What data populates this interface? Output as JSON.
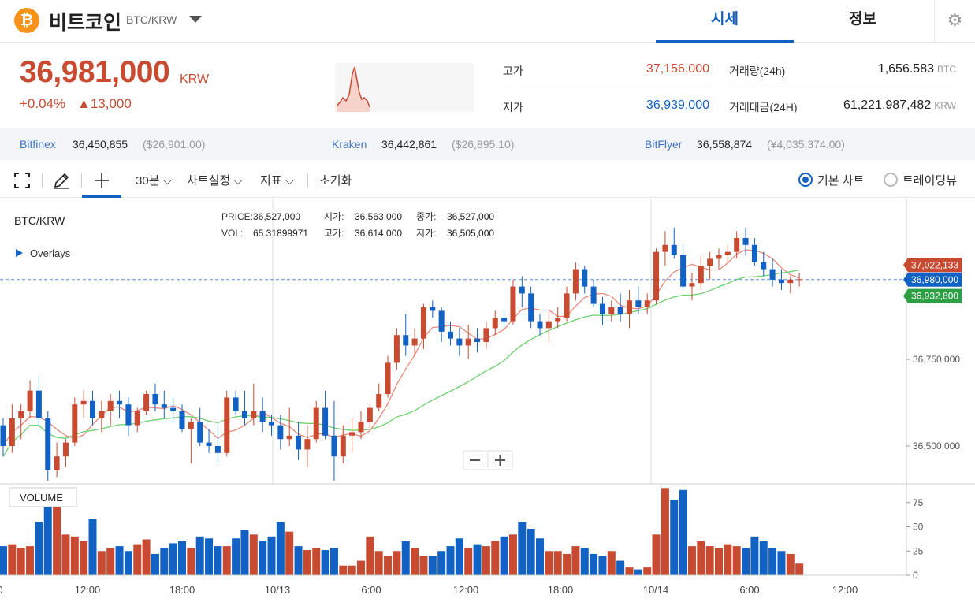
{
  "header": {
    "coin_symbol": "₿",
    "coin_name": "비트코인",
    "pair": "BTC/KRW",
    "tabs": [
      "시세",
      "정보"
    ],
    "gear": "⚙"
  },
  "price": {
    "current": "36,981,000",
    "unit": "KRW",
    "change_pct": "+0.04%",
    "change_amt": "▲13,000"
  },
  "stats": {
    "high_label": "고가",
    "high": "37,156,000",
    "low_label": "저가",
    "low": "36,939,000",
    "vol_label": "거래량(24h)",
    "vol": "1,656.583",
    "vol_unit": "BTC",
    "amt_label": "거래대금(24H)",
    "amt": "61,221,987,482",
    "amt_unit": "KRW"
  },
  "exchanges": [
    {
      "name": "Bitfinex",
      "price": "36,450,855",
      "usd": "($26,901.00)"
    },
    {
      "name": "Kraken",
      "price": "36,442,861",
      "usd": "($26,895.10)"
    },
    {
      "name": "BitFlyer",
      "price": "36,558,874",
      "usd": "(¥4,035,374.00)"
    }
  ],
  "toolbar": {
    "interval": "30분 ⌵",
    "chart_settings": "차트설정 ⌵",
    "indicators": "지표 ⌵",
    "reset": "초기화",
    "basic_chart": "기본 차트",
    "tradingview": "트레이딩뷰"
  },
  "legend": {
    "pair": "BTC/KRW",
    "overlays": "Overlays",
    "price_label": "PRICE:",
    "price": "36,527,000",
    "vol_label": "VOL:",
    "vol": "65.31899971",
    "open_label": "시가:",
    "open": "36,563,000",
    "high_label": "고가:",
    "high": "36,614,000",
    "close_label": "종가:",
    "close": "36,527,000",
    "low_label": "저가:",
    "low": "36,505,000",
    "volume_label": "VOLUME"
  },
  "colors": {
    "up": "#c84a31",
    "down": "#1261c4",
    "ma_short": "#e8897a",
    "ma_long": "#6fcf6f"
  },
  "chart_data": {
    "type": "candlestick",
    "price_ticks": [
      36500000,
      36750000
    ],
    "price_tick_labels": [
      "36,500,000",
      "36,750,000"
    ],
    "volume_ticks": [
      0,
      25,
      50,
      75
    ],
    "x_labels": [
      "0",
      "12:00",
      "18:00",
      "10/13",
      "6:00",
      "12:00",
      "18:00",
      "10/14",
      "6:00",
      "12:00"
    ],
    "tags": [
      {
        "value": 37022133,
        "label": "37,022,133",
        "color": "#c84a31"
      },
      {
        "value": 36980000,
        "label": "36,980,000",
        "color": "#1261c4"
      },
      {
        "value": 36932800,
        "label": "36,932,800",
        "color": "#2e9e44"
      }
    ],
    "current_price": 36980000,
    "candles": [
      [
        36560,
        36580,
        36470,
        36500,
        30
      ],
      [
        36500,
        36620,
        36480,
        36580,
        32
      ],
      [
        36580,
        36620,
        36520,
        36600,
        28
      ],
      [
        36600,
        36690,
        36580,
        36660,
        30
      ],
      [
        36660,
        36700,
        36560,
        36580,
        55
      ],
      [
        36580,
        36600,
        36400,
        36430,
        85
      ],
      [
        36430,
        36510,
        36410,
        36470,
        75
      ],
      [
        36470,
        36520,
        36440,
        36510,
        42
      ],
      [
        36510,
        36640,
        36500,
        36620,
        40
      ],
      [
        36620,
        36660,
        36580,
        36630,
        35
      ],
      [
        36630,
        36660,
        36560,
        36580,
        58
      ],
      [
        36580,
        36630,
        36540,
        36600,
        25
      ],
      [
        36600,
        36650,
        36560,
        36630,
        28
      ],
      [
        36630,
        36660,
        36580,
        36620,
        30
      ],
      [
        36620,
        36640,
        36530,
        36560,
        25
      ],
      [
        36560,
        36610,
        36540,
        36600,
        32
      ],
      [
        36600,
        36660,
        36590,
        36650,
        37
      ],
      [
        36650,
        36680,
        36600,
        36620,
        22
      ],
      [
        36620,
        36660,
        36580,
        36610,
        28
      ],
      [
        36610,
        36640,
        36570,
        36600,
        33
      ],
      [
        36600,
        36620,
        36540,
        36550,
        35
      ],
      [
        36550,
        36580,
        36450,
        36570,
        28
      ],
      [
        36570,
        36610,
        36500,
        36510,
        40
      ],
      [
        36510,
        36550,
        36480,
        36500,
        38
      ],
      [
        36500,
        36560,
        36450,
        36480,
        30
      ],
      [
        36480,
        36660,
        36470,
        36640,
        30
      ],
      [
        36640,
        36660,
        36590,
        36600,
        38
      ],
      [
        36600,
        36660,
        36560,
        36580,
        47
      ],
      [
        36580,
        36680,
        36560,
        36600,
        42
      ],
      [
        36600,
        36640,
        36540,
        36570,
        35
      ],
      [
        36570,
        36590,
        36530,
        36560,
        40
      ],
      [
        36560,
        36590,
        36490,
        36520,
        55
      ],
      [
        36520,
        36610,
        36500,
        36530,
        45
      ],
      [
        36530,
        36570,
        36460,
        36490,
        30
      ],
      [
        36490,
        36560,
        36440,
        36520,
        26
      ],
      [
        36520,
        36630,
        36510,
        36610,
        28
      ],
      [
        36610,
        36660,
        36520,
        36530,
        26
      ],
      [
        36530,
        36630,
        36400,
        36470,
        28
      ],
      [
        36470,
        36560,
        36450,
        36530,
        10
      ],
      [
        36530,
        36580,
        36480,
        36540,
        10
      ],
      [
        36540,
        36600,
        36520,
        36570,
        15
      ],
      [
        36570,
        36620,
        36550,
        36610,
        40
      ],
      [
        36610,
        36680,
        36600,
        36650,
        25
      ],
      [
        36650,
        36760,
        36640,
        36740,
        20
      ],
      [
        36740,
        36840,
        36720,
        36820,
        25
      ],
      [
        36820,
        36880,
        36760,
        36790,
        35
      ],
      [
        36790,
        36840,
        36760,
        36810,
        28
      ],
      [
        36810,
        36910,
        36780,
        36900,
        20
      ],
      [
        36900,
        36920,
        36870,
        36890,
        20
      ],
      [
        36890,
        36900,
        36800,
        36830,
        25
      ],
      [
        36830,
        36860,
        36790,
        36810,
        30
      ],
      [
        36810,
        36840,
        36760,
        36790,
        38
      ],
      [
        36790,
        36850,
        36750,
        36810,
        28
      ],
      [
        36810,
        36840,
        36770,
        36800,
        32
      ],
      [
        36800,
        36860,
        36780,
        36840,
        30
      ],
      [
        36840,
        36890,
        36820,
        36870,
        35
      ],
      [
        36870,
        36890,
        36840,
        36860,
        40
      ],
      [
        36860,
        36980,
        36850,
        36960,
        42
      ],
      [
        36960,
        36990,
        36900,
        36940,
        55
      ],
      [
        36940,
        36960,
        36840,
        36860,
        48
      ],
      [
        36860,
        36880,
        36820,
        36840,
        38
      ],
      [
        36840,
        36890,
        36800,
        36860,
        25
      ],
      [
        36860,
        36900,
        36840,
        36870,
        25
      ],
      [
        36870,
        36960,
        36860,
        36940,
        22
      ],
      [
        36940,
        37030,
        36920,
        37010,
        30
      ],
      [
        37010,
        37020,
        36940,
        36960,
        28
      ],
      [
        36960,
        36980,
        36900,
        36910,
        22
      ],
      [
        36910,
        36930,
        36850,
        36880,
        20
      ],
      [
        36880,
        36920,
        36860,
        36900,
        25
      ],
      [
        36900,
        36940,
        36860,
        36880,
        15
      ],
      [
        36880,
        36950,
        36840,
        36920,
        8
      ],
      [
        36920,
        36960,
        36880,
        36900,
        6
      ],
      [
        36900,
        36940,
        36880,
        36920,
        8
      ],
      [
        36920,
        37070,
        36910,
        37060,
        42
      ],
      [
        37060,
        37120,
        37020,
        37080,
        90
      ],
      [
        37080,
        37130,
        37040,
        37050,
        78
      ],
      [
        37050,
        37080,
        36950,
        36960,
        88
      ],
      [
        36960,
        37000,
        36920,
        36970,
        30
      ],
      [
        36970,
        37050,
        36950,
        37020,
        35
      ],
      [
        37020,
        37060,
        36980,
        37040,
        30
      ],
      [
        37040,
        37070,
        37010,
        37050,
        28
      ],
      [
        37050,
        37080,
        37030,
        37060,
        32
      ],
      [
        37060,
        37120,
        37040,
        37100,
        30
      ],
      [
        37100,
        37130,
        37050,
        37080,
        28
      ],
      [
        37080,
        37100,
        37020,
        37030,
        40
      ],
      [
        37030,
        37060,
        36990,
        37010,
        35
      ],
      [
        37010,
        37040,
        36960,
        36980,
        28
      ],
      [
        36980,
        37010,
        36950,
        36970,
        25
      ],
      [
        36970,
        36990,
        36940,
        36980,
        22
      ],
      [
        36980,
        37000,
        36960,
        36981,
        12
      ]
    ]
  }
}
